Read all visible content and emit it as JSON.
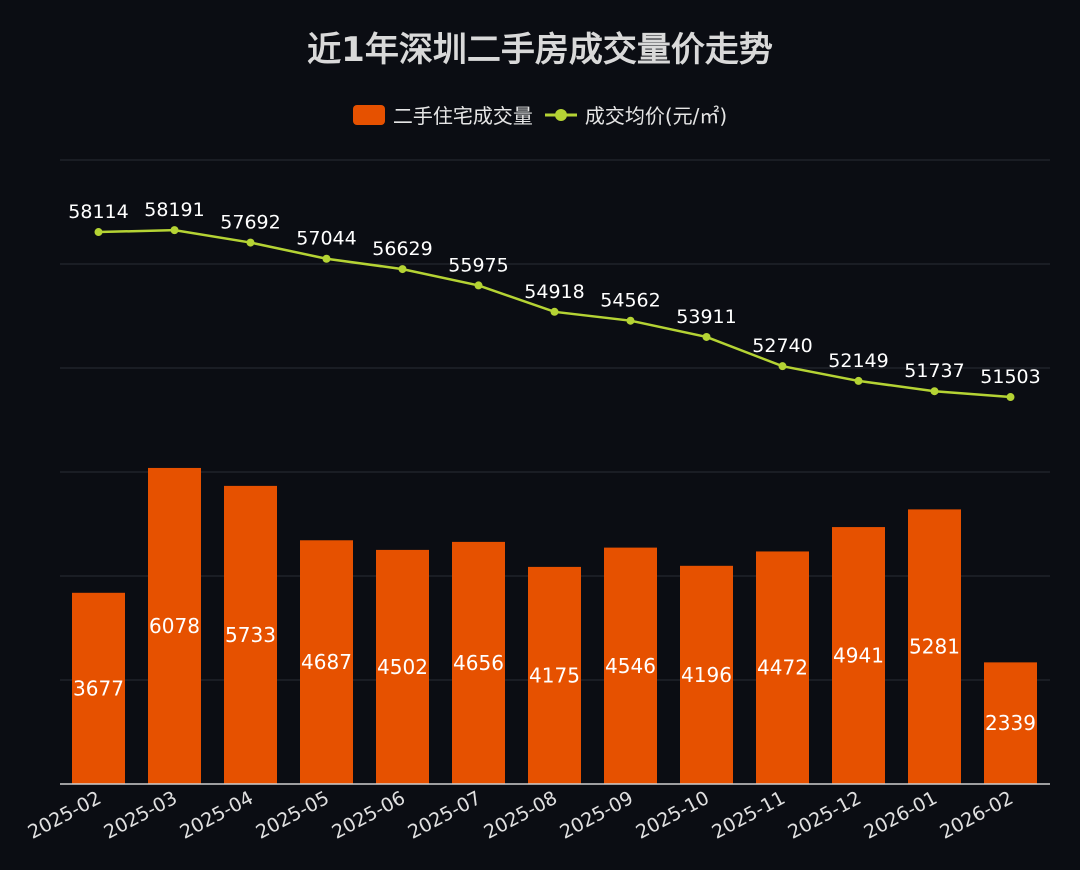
{
  "title": "近1年深圳二手房成交量价走势",
  "legend": {
    "volume_label": "二手住宅成交量",
    "price_label": "成交均价(元/㎡)"
  },
  "colors": {
    "background": "#0b0d13",
    "bar": "#e65100",
    "line": "#b5d334",
    "grid": "#2a2d36"
  },
  "chart_data": {
    "type": "bar+line",
    "title": "近1年深圳二手房成交量价走势",
    "categories": [
      "2025-02",
      "2025-03",
      "2025-04",
      "2025-05",
      "2025-06",
      "2025-07",
      "2025-08",
      "2025-09",
      "2025-10",
      "2025-11",
      "2025-12",
      "2026-01",
      "2026-02"
    ],
    "series": [
      {
        "name": "二手住宅成交量",
        "type": "bar",
        "axis": "left",
        "values": [
          3677,
          6078,
          5733,
          4687,
          4502,
          4656,
          4175,
          4546,
          4196,
          4472,
          4941,
          5281,
          2339
        ]
      },
      {
        "name": "成交均价(元/㎡)",
        "type": "line",
        "axis": "right",
        "values": [
          58114,
          58191,
          57692,
          57044,
          56629,
          55975,
          54918,
          54562,
          53911,
          52740,
          52149,
          51737,
          51503
        ]
      }
    ],
    "left_axis_range": [
      0,
      12000
    ],
    "right_axis_range": [
      36000,
      61000
    ],
    "grid": true,
    "legend_position": "top-center"
  }
}
